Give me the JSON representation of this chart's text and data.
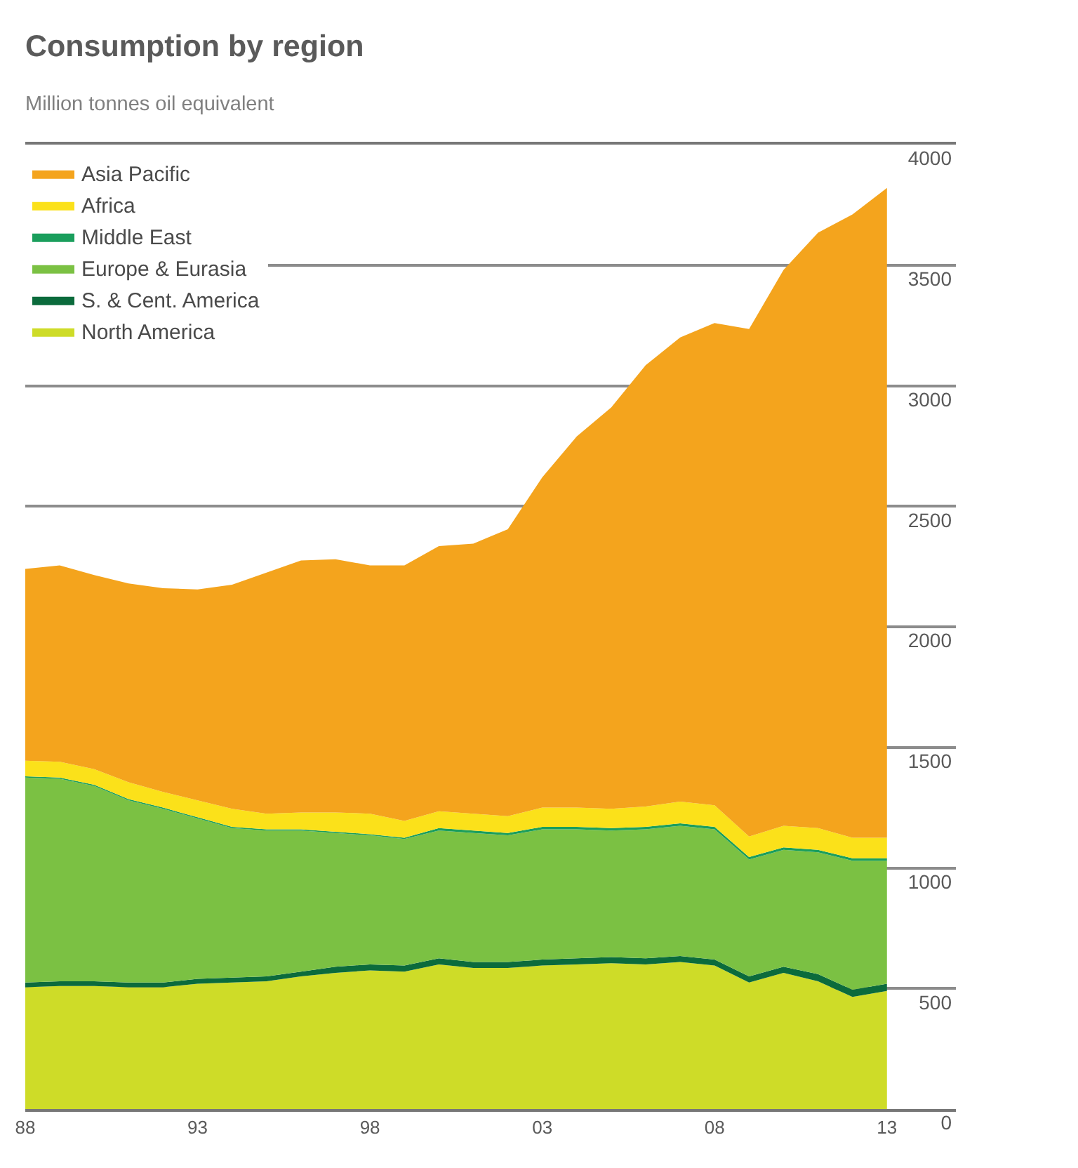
{
  "chart_data": {
    "type": "area",
    "title": "Consumption by region",
    "subtitle": "Million tonnes oil equivalent",
    "x": [
      1988,
      1989,
      1990,
      1991,
      1992,
      1993,
      1994,
      1995,
      1996,
      1997,
      1998,
      1999,
      2000,
      2001,
      2002,
      2003,
      2004,
      2005,
      2006,
      2007,
      2008,
      2009,
      2010,
      2011,
      2012,
      2013
    ],
    "series": [
      {
        "name": "North America",
        "color": "#cedc28",
        "values": [
          505,
          510,
          510,
          505,
          505,
          520,
          525,
          530,
          550,
          565,
          575,
          570,
          600,
          585,
          585,
          595,
          600,
          605,
          600,
          610,
          595,
          525,
          565,
          530,
          465,
          490
        ]
      },
      {
        "name": "S. & Cent. America",
        "color": "#0b6b3c",
        "values": [
          20,
          20,
          20,
          20,
          20,
          20,
          20,
          20,
          20,
          25,
          25,
          25,
          25,
          25,
          25,
          25,
          25,
          25,
          25,
          25,
          25,
          25,
          25,
          30,
          30,
          30
        ]
      },
      {
        "name": "Europe & Eurasia",
        "color": "#7bc143",
        "values": [
          850,
          840,
          810,
          755,
          720,
          665,
          620,
          605,
          585,
          555,
          535,
          525,
          530,
          535,
          525,
          540,
          535,
          525,
          535,
          540,
          540,
          485,
          485,
          505,
          535,
          510
        ]
      },
      {
        "name": "Middle East",
        "color": "#1a9e5c",
        "values": [
          5,
          5,
          5,
          5,
          5,
          5,
          5,
          5,
          5,
          5,
          5,
          5,
          10,
          10,
          10,
          10,
          10,
          10,
          10,
          10,
          10,
          10,
          10,
          10,
          10,
          10
        ]
      },
      {
        "name": "Africa",
        "color": "#fbe11a",
        "values": [
          65,
          65,
          65,
          70,
          65,
          70,
          75,
          65,
          70,
          80,
          85,
          70,
          70,
          70,
          70,
          80,
          80,
          80,
          85,
          90,
          90,
          85,
          90,
          90,
          85,
          85
        ]
      },
      {
        "name": "Asia Pacific",
        "color": "#f4a41d",
        "values": [
          795,
          815,
          805,
          825,
          845,
          875,
          930,
          1000,
          1045,
          1050,
          1030,
          1060,
          1100,
          1120,
          1190,
          1370,
          1540,
          1665,
          1830,
          1925,
          2000,
          2105,
          2305,
          2470,
          2585,
          2695
        ]
      }
    ],
    "stacked": true,
    "xlim": [
      1988,
      2015
    ],
    "xticks": [
      {
        "value": 1988,
        "label": "88"
      },
      {
        "value": 1993,
        "label": "93"
      },
      {
        "value": 1998,
        "label": "98"
      },
      {
        "value": 2003,
        "label": "03"
      },
      {
        "value": 2008,
        "label": "08"
      },
      {
        "value": 2013,
        "label": "13"
      }
    ],
    "ylim": [
      0,
      4000
    ],
    "yticks": [
      0,
      500,
      1000,
      1500,
      2000,
      2500,
      3000,
      3500,
      4000
    ],
    "grid": "y",
    "legend": "top left"
  }
}
